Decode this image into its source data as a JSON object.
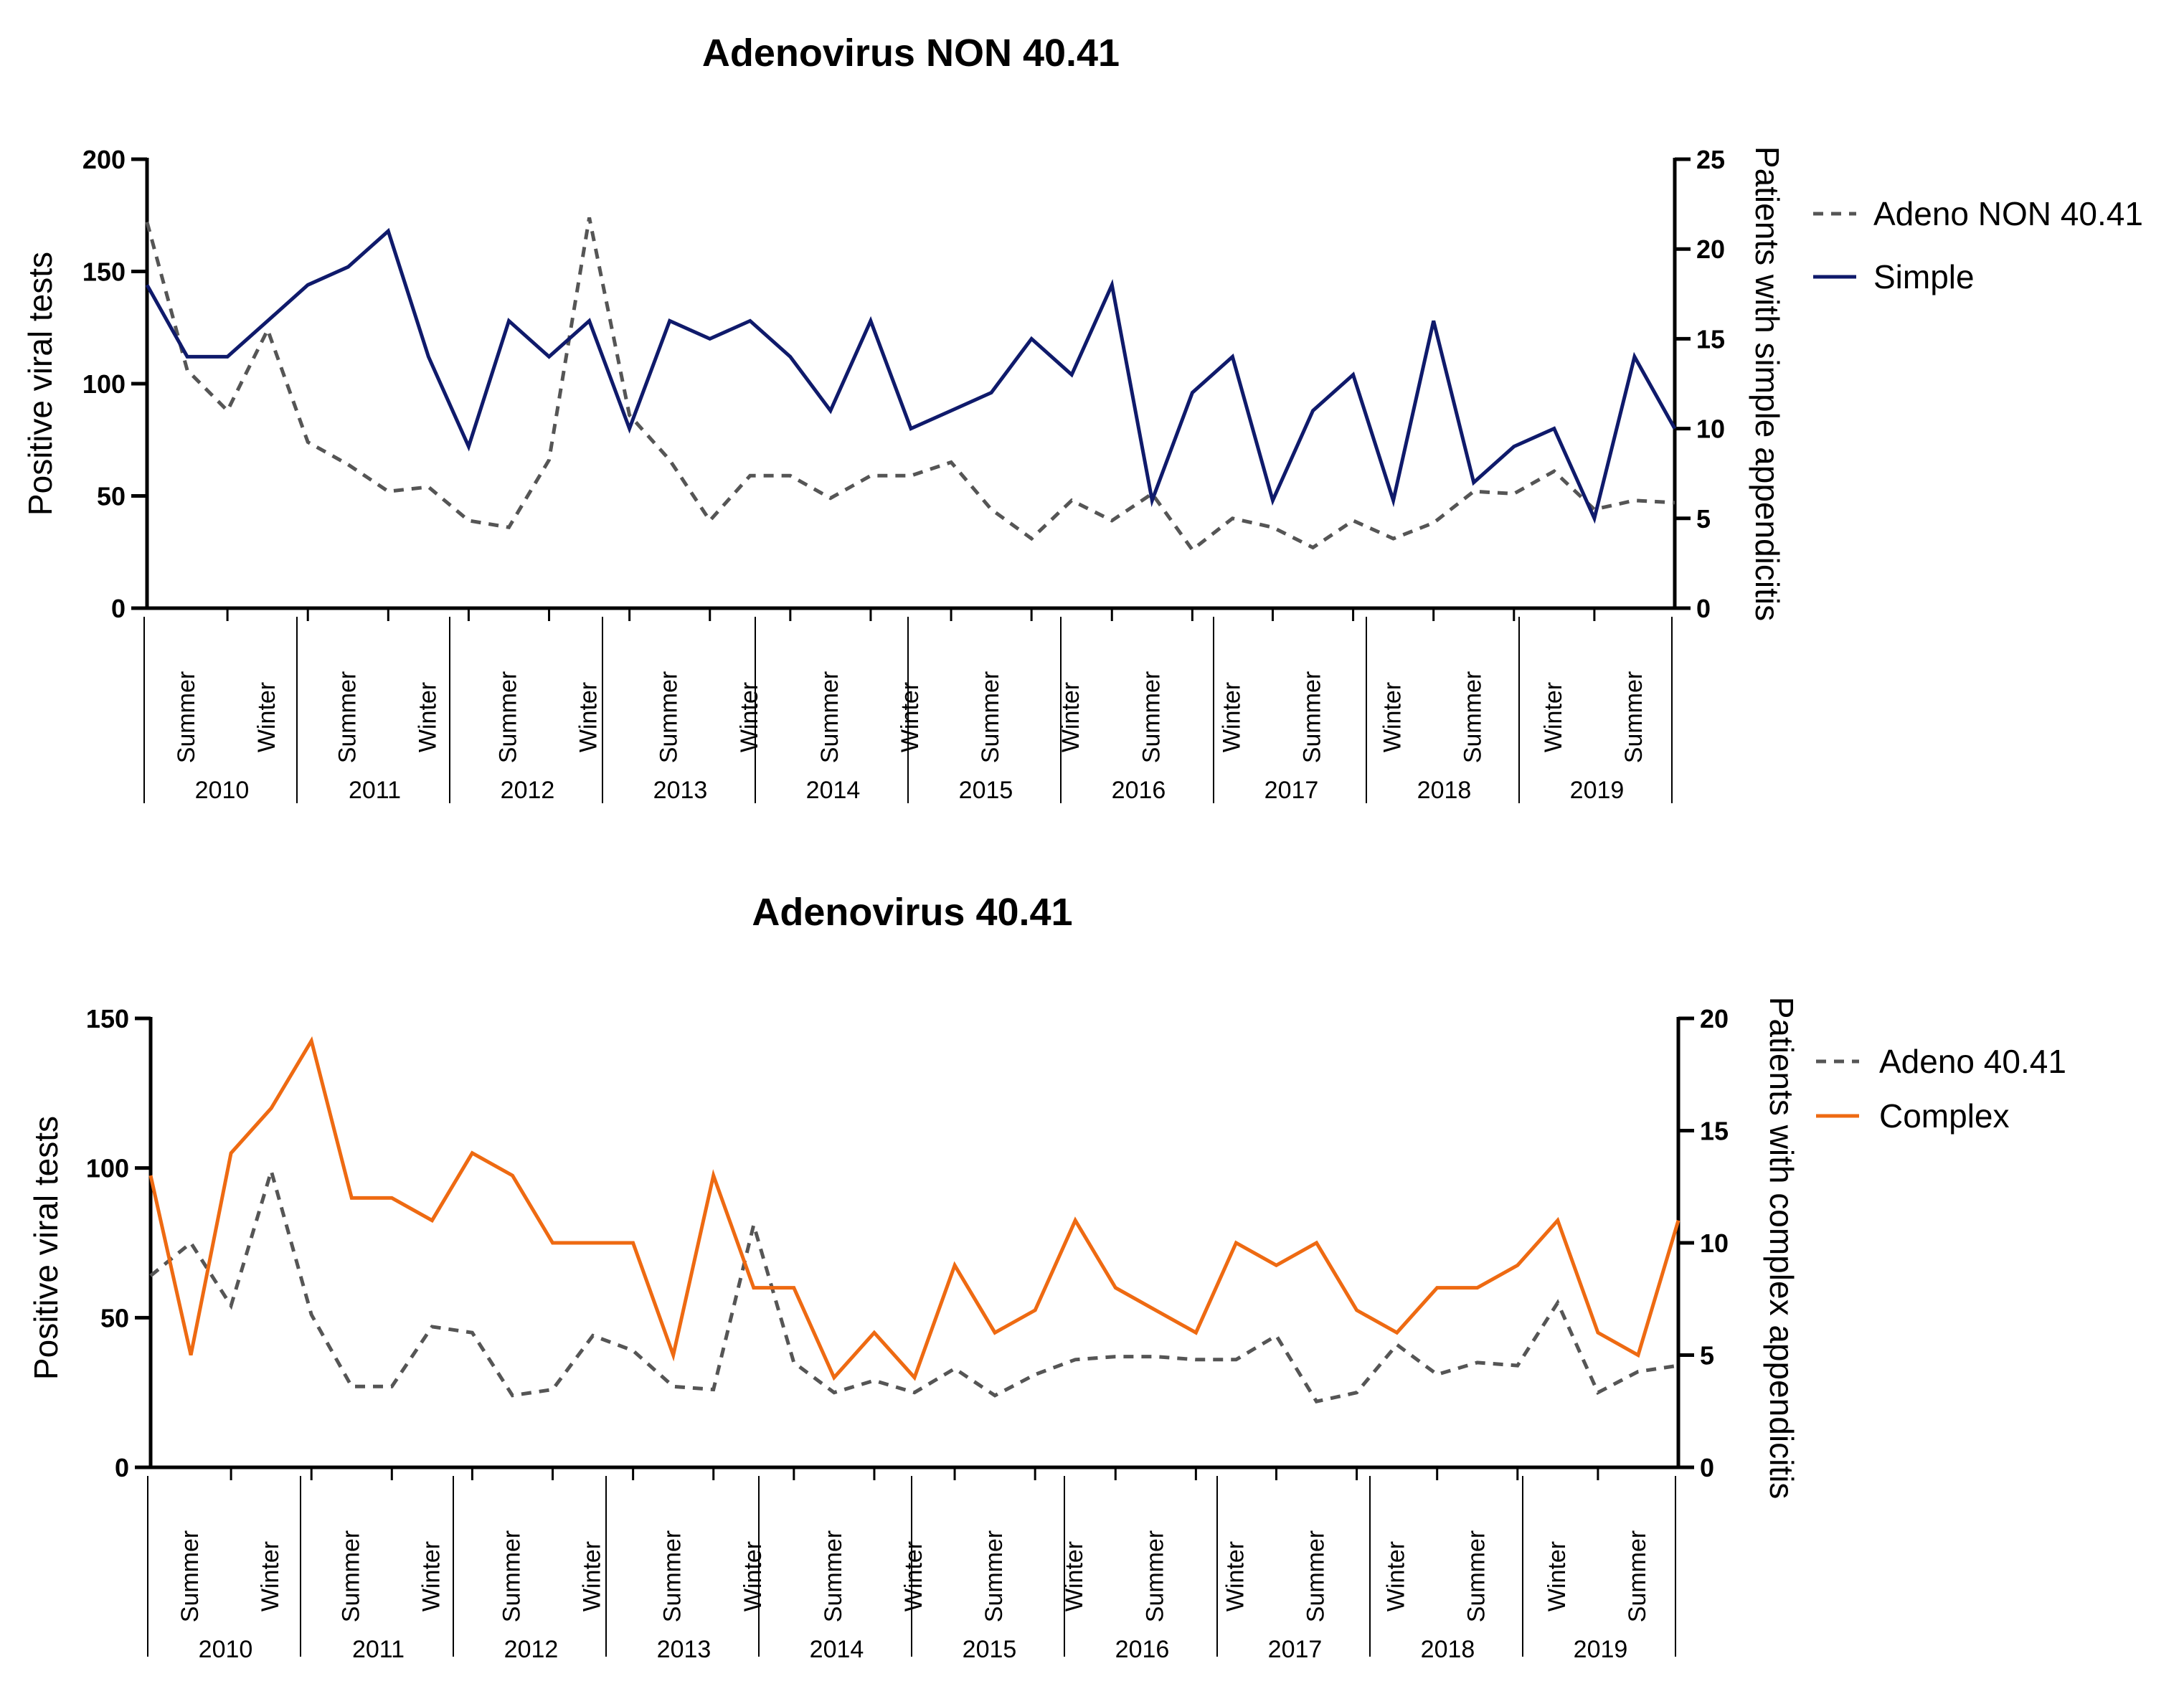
{
  "chart_data": [
    {
      "type": "line",
      "title": "Adenovirus NON 40.41",
      "ylabel": "Positive viral tests",
      "y2label": "Patients with simple appendicitis",
      "ylim": [
        0,
        200
      ],
      "yticks": [
        "0",
        "50",
        "100",
        "150",
        "200"
      ],
      "y2lim": [
        0,
        25
      ],
      "y2ticks": [
        "0",
        "5",
        "10",
        "15",
        "20",
        "25"
      ],
      "season_labels": [
        "Summer",
        "Winter",
        "Summer",
        "Winter",
        "Summer",
        "Winter",
        "Summer",
        "Winter",
        "Summer",
        "Winter",
        "Summer",
        "Winter",
        "Summer",
        "Winter",
        "Summer",
        "Winter",
        "Summer",
        "Winter",
        "Summer"
      ],
      "years": [
        "2010",
        "2011",
        "2012",
        "2013",
        "2014",
        "2015",
        "2016",
        "2017",
        "2018",
        "2019"
      ],
      "legend_position": "right",
      "series": [
        {
          "name": "Adeno NON 40.41",
          "axis": "left",
          "style": "dashed",
          "color": "#555555",
          "values": [
            172,
            106,
            88,
            124,
            74,
            64,
            52,
            54,
            39,
            36,
            66,
            174,
            86,
            66,
            39,
            59,
            59,
            49,
            59,
            59,
            65,
            44,
            31,
            48,
            39,
            51,
            26,
            40,
            36,
            27,
            39,
            31,
            38,
            52,
            51,
            61,
            44,
            48,
            47
          ]
        },
        {
          "name": "Simple",
          "axis": "right",
          "style": "solid",
          "color": "#0f1a6b",
          "values": [
            18,
            14,
            14,
            16,
            18,
            19,
            21,
            14,
            9,
            16,
            14,
            16,
            10,
            16,
            15,
            16,
            14,
            11,
            16,
            10,
            11,
            12,
            15,
            13,
            18,
            6,
            12,
            14,
            6,
            11,
            13,
            6,
            16,
            7,
            9,
            10,
            5,
            14,
            10
          ]
        }
      ]
    },
    {
      "type": "line",
      "title": "Adenovirus 40.41",
      "ylabel": "Positive viral tests",
      "y2label": "Patients with complex appendicitis",
      "ylim": [
        0,
        150
      ],
      "yticks": [
        "0",
        "50",
        "100",
        "150"
      ],
      "y2lim": [
        0,
        20
      ],
      "y2ticks": [
        "0",
        "5",
        "10",
        "15",
        "20"
      ],
      "season_labels": [
        "Summer",
        "Winter",
        "Summer",
        "Winter",
        "Summer",
        "Winter",
        "Summer",
        "Winter",
        "Summer",
        "Winter",
        "Summer",
        "Winter",
        "Summer",
        "Winter",
        "Summer",
        "Winter",
        "Summer",
        "Winter",
        "Summer"
      ],
      "years": [
        "2010",
        "2011",
        "2012",
        "2013",
        "2014",
        "2015",
        "2016",
        "2017",
        "2018",
        "2019"
      ],
      "legend_position": "right",
      "series": [
        {
          "name": "Adeno 40.41",
          "axis": "left",
          "style": "dashed",
          "color": "#555555",
          "values": [
            64,
            75,
            54,
            99,
            51,
            27,
            27,
            47,
            45,
            24,
            26,
            44,
            39,
            27,
            26,
            81,
            35,
            25,
            29,
            25,
            33,
            24,
            31,
            36,
            37,
            37,
            36,
            36,
            44,
            22,
            25,
            41,
            31,
            35,
            34,
            55,
            25,
            32,
            34
          ]
        },
        {
          "name": "Complex",
          "axis": "right",
          "style": "solid",
          "color": "#ee6a12",
          "values": [
            13,
            5,
            14,
            16,
            19,
            12,
            12,
            11,
            14,
            13,
            10,
            10,
            10,
            5,
            13,
            8,
            8,
            4,
            6,
            4,
            9,
            6,
            7,
            11,
            8,
            7,
            6,
            10,
            9,
            10,
            7,
            6,
            8,
            8,
            9,
            11,
            6,
            5,
            11
          ]
        }
      ]
    }
  ]
}
